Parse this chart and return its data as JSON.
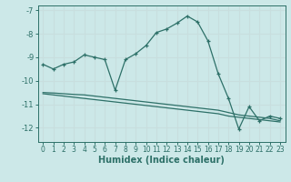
{
  "xlabel": "Humidex (Indice chaleur)",
  "xlim": [
    -0.5,
    23.5
  ],
  "ylim": [
    -12.6,
    -6.8
  ],
  "yticks": [
    -7,
    -8,
    -9,
    -10,
    -11,
    -12
  ],
  "xticks": [
    0,
    1,
    2,
    3,
    4,
    5,
    6,
    7,
    8,
    9,
    10,
    11,
    12,
    13,
    14,
    15,
    16,
    17,
    18,
    19,
    20,
    21,
    22,
    23
  ],
  "bg_color": "#cce8e8",
  "line_color": "#2d7068",
  "grid_color": "#c8dede",
  "line1_x": [
    0,
    1,
    2,
    3,
    4,
    5,
    6,
    7,
    8,
    9,
    10,
    11,
    12,
    13,
    14,
    15,
    16,
    17,
    18,
    19,
    20,
    21,
    22,
    23
  ],
  "line1_y": [
    -9.3,
    -9.5,
    -9.3,
    -9.2,
    -8.9,
    -9.0,
    -9.1,
    -10.4,
    -9.1,
    -8.85,
    -8.5,
    -7.95,
    -7.8,
    -7.55,
    -7.25,
    -7.5,
    -8.3,
    -9.7,
    -10.75,
    -12.05,
    -11.1,
    -11.7,
    -11.5,
    -11.6
  ],
  "line2_x": [
    0,
    1,
    2,
    3,
    4,
    5,
    6,
    7,
    8,
    9,
    10,
    11,
    12,
    13,
    14,
    15,
    16,
    17,
    18,
    19,
    20,
    21,
    22,
    23
  ],
  "line2_y": [
    -10.5,
    -10.52,
    -10.55,
    -10.58,
    -10.6,
    -10.65,
    -10.7,
    -10.75,
    -10.8,
    -10.85,
    -10.9,
    -10.95,
    -11.0,
    -11.05,
    -11.1,
    -11.15,
    -11.2,
    -11.25,
    -11.35,
    -11.45,
    -11.5,
    -11.55,
    -11.6,
    -11.7
  ],
  "line3_x": [
    0,
    1,
    2,
    3,
    4,
    5,
    6,
    7,
    8,
    9,
    10,
    11,
    12,
    13,
    14,
    15,
    16,
    17,
    18,
    19,
    20,
    21,
    22,
    23
  ],
  "line3_y": [
    -10.55,
    -10.6,
    -10.65,
    -10.7,
    -10.75,
    -10.8,
    -10.85,
    -10.9,
    -10.95,
    -11.0,
    -11.05,
    -11.1,
    -11.15,
    -11.2,
    -11.25,
    -11.3,
    -11.35,
    -11.4,
    -11.5,
    -11.55,
    -11.6,
    -11.65,
    -11.7,
    -11.75
  ]
}
